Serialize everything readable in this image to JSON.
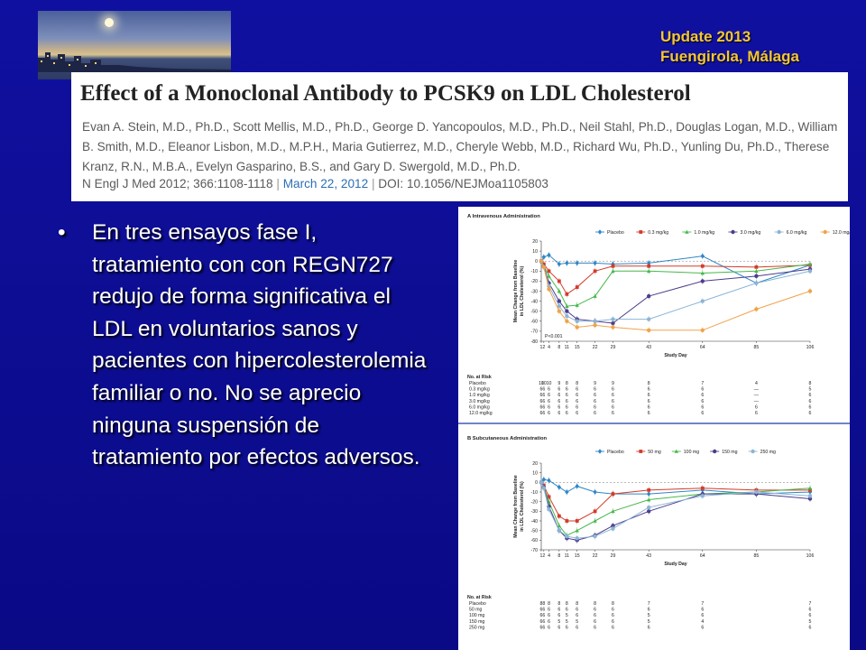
{
  "header": {
    "update": "Update 2013",
    "location": "Fuengirola, Málaga"
  },
  "article": {
    "title": "Effect of a Monoclonal Antibody to PCSK9 on LDL Cholesterol",
    "authors": "Evan A. Stein, M.D., Ph.D., Scott Mellis, M.D., Ph.D., George D. Yancopoulos, M.D., Ph.D., Neil Stahl, Ph.D., Douglas Logan, M.D., William B. Smith, M.D., Eleanor Lisbon, M.D., M.P.H., Maria Gutierrez, M.D., Cheryle Webb, M.D., Richard Wu, Ph.D., Yunling Du, Ph.D., Therese Kranz, R.N., M.B.A., Evelyn Gasparino, B.S., and Gary D. Swergold, M.D., Ph.D.",
    "journal": "N Engl J Med 2012; 366:1108-1118",
    "date": "March 22, 2012",
    "doi": "DOI: 10.1056/NEJMoa1105803"
  },
  "bullet": {
    "symbol": "•",
    "text": " En tres ensayos fase I, tratamiento con con REGN727 redujo de forma significativa el LDL en voluntarios sanos y pacientes con hipercolesterolemia familiar o no. No se aprecio ninguna suspensión de tratamiento por efectos adversos."
  },
  "chart_data": [
    {
      "type": "line",
      "title": "A Intravenous Administration",
      "xlabel": "Study Day",
      "ylabel": "Mean Change from Baseline in LDL Cholesterol (%)",
      "ylim": [
        -80,
        20
      ],
      "yticks": [
        20,
        10,
        0,
        -10,
        -20,
        -30,
        -40,
        -50,
        -60,
        -70,
        -80
      ],
      "x_categories": [
        "1",
        "2",
        "4",
        "8",
        "11",
        "15",
        "22",
        "29",
        "43",
        "64",
        "85",
        "106"
      ],
      "annotation": "P<0.001",
      "legend_position": "top",
      "series": [
        {
          "name": "Placebo",
          "color": "#2f86c8",
          "marker": "diamond",
          "values": [
            -1,
            4,
            6,
            -3,
            -2,
            -2,
            -2,
            -3,
            -2,
            5,
            -22,
            -4
          ]
        },
        {
          "name": "0.3 mg/kg",
          "color": "#d23b2a",
          "marker": "square",
          "values": [
            0,
            -3,
            -10,
            -20,
            -33,
            -26,
            -10,
            -5,
            -5,
            -5,
            -6,
            -4
          ]
        },
        {
          "name": "1.0 mg/kg",
          "color": "#47b84c",
          "marker": "triangle",
          "values": [
            0,
            -5,
            -15,
            -30,
            -45,
            -44,
            -35,
            -10,
            -10,
            -12,
            -10,
            -3
          ]
        },
        {
          "name": "3.0 mg/kg",
          "color": "#4c3d8c",
          "marker": "circle",
          "values": [
            0,
            -5,
            -22,
            -40,
            -50,
            -58,
            -60,
            -62,
            -35,
            -20,
            -15,
            -8
          ]
        },
        {
          "name": "6.0 mg/kg",
          "color": "#8bb5d6",
          "marker": "circle",
          "values": [
            0,
            -6,
            -25,
            -45,
            -55,
            -60,
            -60,
            -58,
            -58,
            -40,
            -22,
            -10
          ]
        },
        {
          "name": "12.0 mg/kg",
          "color": "#f0a34b",
          "marker": "circle",
          "values": [
            0,
            -6,
            -28,
            -50,
            -60,
            -66,
            -64,
            -66,
            -69,
            -69,
            -48,
            -30
          ]
        }
      ],
      "risk_table": {
        "label": "No. at Risk",
        "rows": [
          {
            "name": "Placebo",
            "counts": [
              "10",
              "10",
              "10",
              "9",
              "8",
              "8",
              "9",
              "9",
              "8",
              "7",
              "4",
              "8"
            ]
          },
          {
            "name": "0.3 mg/kg",
            "counts": [
              "6",
              "6",
              "6",
              "6",
              "6",
              "6",
              "6",
              "6",
              "6",
              "6",
              "—",
              "5"
            ]
          },
          {
            "name": "1.0 mg/kg",
            "counts": [
              "6",
              "6",
              "6",
              "6",
              "6",
              "6",
              "6",
              "6",
              "6",
              "6",
              "—",
              "6"
            ]
          },
          {
            "name": "3.0 mg/kg",
            "counts": [
              "6",
              "6",
              "6",
              "6",
              "6",
              "6",
              "6",
              "6",
              "6",
              "6",
              "—",
              "6"
            ]
          },
          {
            "name": "6.0 mg/kg",
            "counts": [
              "6",
              "6",
              "6",
              "6",
              "6",
              "6",
              "6",
              "6",
              "6",
              "6",
              "6",
              "6"
            ]
          },
          {
            "name": "12.0 mg/kg",
            "counts": [
              "6",
              "6",
              "6",
              "6",
              "6",
              "6",
              "6",
              "6",
              "6",
              "6",
              "6",
              "6"
            ]
          }
        ]
      }
    },
    {
      "type": "line",
      "title": "B Subcutaneous Administration",
      "xlabel": "Study Day",
      "ylabel": "Mean Change from Baseline in LDL Cholesterol (%)",
      "ylim": [
        -70,
        20
      ],
      "yticks": [
        20,
        10,
        0,
        -10,
        -20,
        -30,
        -40,
        -50,
        -60,
        -70
      ],
      "x_categories": [
        "1",
        "2",
        "4",
        "8",
        "11",
        "15",
        "22",
        "29",
        "43",
        "64",
        "85",
        "106"
      ],
      "legend_position": "top",
      "series": [
        {
          "name": "Placebo",
          "color": "#2f86c8",
          "marker": "diamond",
          "values": [
            0,
            3,
            2,
            -5,
            -10,
            -4,
            -10,
            -12,
            -12,
            -8,
            -12,
            -10
          ]
        },
        {
          "name": "50 mg",
          "color": "#d23b2a",
          "marker": "square",
          "values": [
            0,
            -3,
            -15,
            -35,
            -40,
            -40,
            -30,
            -12,
            -8,
            -6,
            -8,
            -8
          ]
        },
        {
          "name": "100 mg",
          "color": "#47b84c",
          "marker": "triangle",
          "values": [
            0,
            -5,
            -20,
            -45,
            -55,
            -50,
            -40,
            -30,
            -18,
            -12,
            -10,
            -6
          ]
        },
        {
          "name": "150 mg",
          "color": "#4c3d8c",
          "marker": "circle",
          "values": [
            0,
            -5,
            -25,
            -50,
            -58,
            -60,
            -55,
            -45,
            -30,
            -12,
            -12,
            -17
          ]
        },
        {
          "name": "250 mg",
          "color": "#8bb5d6",
          "marker": "circle",
          "values": [
            0,
            -6,
            -28,
            -50,
            -56,
            -58,
            -56,
            -48,
            -26,
            -14,
            -10,
            -14
          ]
        }
      ],
      "risk_table": {
        "label": "No. at Risk",
        "rows": [
          {
            "name": "Placebo",
            "counts": [
              "8",
              "8",
              "8",
              "8",
              "8",
              "8",
              "8",
              "8",
              "7",
              "7",
              "",
              "7"
            ]
          },
          {
            "name": "50 mg",
            "counts": [
              "6",
              "6",
              "6",
              "6",
              "6",
              "6",
              "6",
              "6",
              "6",
              "6",
              "",
              "6"
            ]
          },
          {
            "name": "100 mg",
            "counts": [
              "6",
              "6",
              "6",
              "6",
              "5",
              "6",
              "6",
              "6",
              "5",
              "6",
              "",
              "6"
            ]
          },
          {
            "name": "150 mg",
            "counts": [
              "6",
              "6",
              "6",
              "5",
              "5",
              "5",
              "6",
              "6",
              "5",
              "4",
              "",
              "5"
            ]
          },
          {
            "name": "250 mg",
            "counts": [
              "6",
              "6",
              "6",
              "6",
              "6",
              "6",
              "6",
              "6",
              "6",
              "6",
              "",
              "6"
            ]
          }
        ]
      }
    }
  ]
}
